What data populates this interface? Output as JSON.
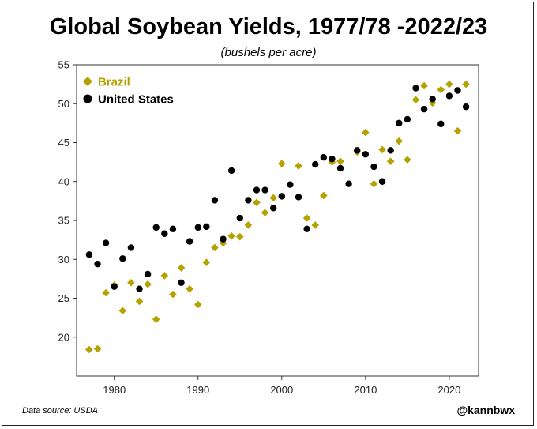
{
  "chart_data": {
    "type": "scatter",
    "title": "Global Soybean Yields, 1977/78 -2022/23",
    "subtitle": "(bushels per acre)",
    "xlabel": "",
    "ylabel": "",
    "xlim": [
      1975.5,
      2023.5
    ],
    "ylim": [
      15,
      55
    ],
    "x_ticks": [
      1980,
      1990,
      2000,
      2010,
      2020
    ],
    "y_ticks": [
      20,
      25,
      30,
      35,
      40,
      45,
      50,
      55
    ],
    "legend_position": "top-left",
    "series": [
      {
        "name": "Brazil",
        "marker": "diamond",
        "color": "#b5a200",
        "x": [
          1977,
          1978,
          1979,
          1980,
          1981,
          1982,
          1983,
          1984,
          1985,
          1986,
          1987,
          1988,
          1989,
          1990,
          1991,
          1992,
          1993,
          1994,
          1995,
          1996,
          1997,
          1998,
          1999,
          2000,
          2002,
          2003,
          2004,
          2005,
          2006,
          2007,
          2009,
          2010,
          2011,
          2012,
          2013,
          2014,
          2015,
          2016,
          2017,
          2018,
          2019,
          2020,
          2021,
          2022
        ],
        "values": [
          18.4,
          18.5,
          25.7,
          26.7,
          23.4,
          27.0,
          24.6,
          26.8,
          22.3,
          27.9,
          25.5,
          28.9,
          26.2,
          24.2,
          29.6,
          31.5,
          32.1,
          33.0,
          32.9,
          34.4,
          37.3,
          36.0,
          37.9,
          42.3,
          42.0,
          35.3,
          34.4,
          38.2,
          42.5,
          42.6,
          43.8,
          46.3,
          39.7,
          44.1,
          42.6,
          45.2,
          42.8,
          50.5,
          52.3,
          50.1,
          51.8,
          52.5,
          46.5,
          52.5
        ]
      },
      {
        "name": "United States",
        "marker": "circle",
        "color": "#000000",
        "x": [
          1977,
          1978,
          1979,
          1980,
          1981,
          1982,
          1983,
          1984,
          1985,
          1986,
          1987,
          1988,
          1989,
          1990,
          1991,
          1992,
          1993,
          1994,
          1995,
          1996,
          1997,
          1998,
          1999,
          2000,
          2001,
          2002,
          2003,
          2004,
          2005,
          2006,
          2007,
          2008,
          2009,
          2010,
          2011,
          2012,
          2013,
          2014,
          2015,
          2016,
          2017,
          2018,
          2019,
          2020,
          2021,
          2022
        ],
        "values": [
          30.6,
          29.4,
          32.1,
          26.5,
          30.1,
          31.5,
          26.2,
          28.1,
          34.1,
          33.3,
          33.9,
          27.0,
          32.3,
          34.1,
          34.2,
          37.6,
          32.6,
          41.4,
          35.3,
          37.6,
          38.9,
          38.9,
          36.6,
          38.1,
          39.6,
          38.0,
          33.9,
          42.2,
          43.1,
          42.9,
          41.7,
          39.7,
          44.0,
          43.5,
          41.9,
          40.0,
          44.0,
          47.5,
          48.0,
          52.0,
          49.3,
          50.6,
          47.4,
          51.0,
          51.7,
          49.6
        ]
      }
    ]
  },
  "footer": {
    "source": "Data source: USDA",
    "handle": "@kannbwx"
  }
}
